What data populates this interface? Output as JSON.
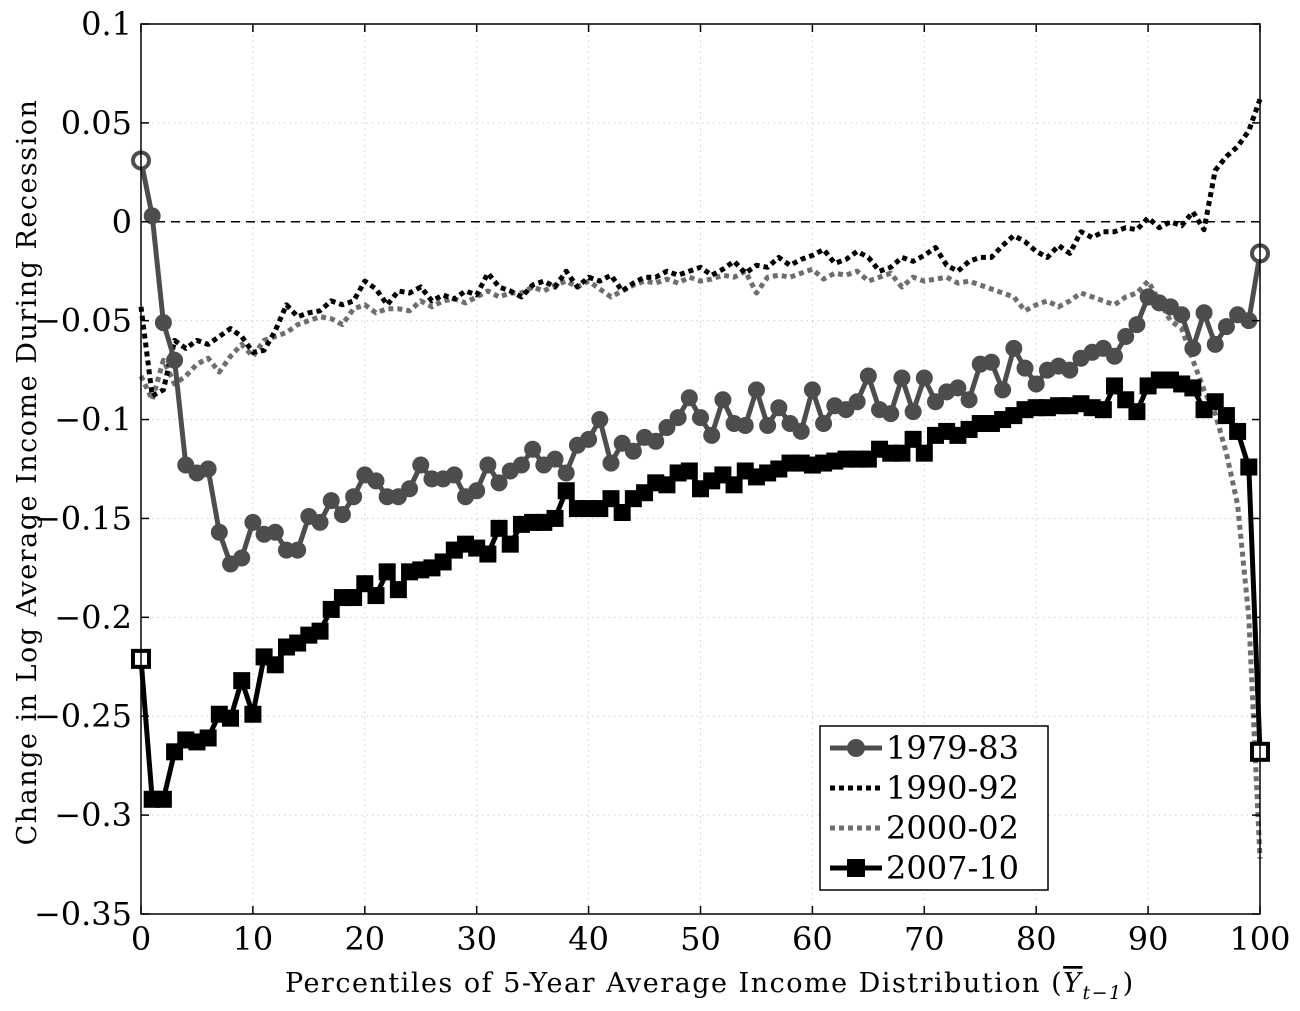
{
  "chart_data": {
    "type": "line",
    "xlabel": "Percentiles of 5-Year Average Income Distribution (",
    "xlabel_symbol": "Y",
    "xlabel_subscript": "t−1",
    "xlabel_close": ")",
    "ylabel": "Change in Log Average Income During Recession",
    "xlim": [
      0,
      100
    ],
    "ylim": [
      -0.35,
      0.1
    ],
    "xticks": [
      0,
      10,
      20,
      30,
      40,
      50,
      60,
      70,
      80,
      90,
      100
    ],
    "xtick_labels": [
      "0",
      "10",
      "20",
      "30",
      "40",
      "50",
      "60",
      "70",
      "80",
      "90",
      "100"
    ],
    "yticks": [
      0.1,
      0.05,
      0,
      -0.05,
      -0.1,
      -0.15,
      -0.2,
      -0.25,
      -0.3,
      -0.35
    ],
    "ytick_labels": [
      "0.1",
      "0.05",
      "0",
      "−0.05",
      "−0.1",
      "−0.15",
      "−0.2",
      "−0.25",
      "−0.3",
      "−0.35"
    ],
    "grid": true,
    "reference_line": 0,
    "legend_position": "lower-right",
    "series": [
      {
        "name": "1979-83",
        "color": "#4d4d4d",
        "style": "solid-circle",
        "x": [
          0,
          1,
          2,
          3,
          4,
          5,
          6,
          7,
          8,
          9,
          10,
          11,
          12,
          13,
          14,
          15,
          16,
          17,
          18,
          19,
          20,
          21,
          22,
          23,
          24,
          25,
          26,
          27,
          28,
          29,
          30,
          31,
          32,
          33,
          34,
          35,
          36,
          37,
          38,
          39,
          40,
          41,
          42,
          43,
          44,
          45,
          46,
          47,
          48,
          49,
          50,
          51,
          52,
          53,
          54,
          55,
          56,
          57,
          58,
          59,
          60,
          61,
          62,
          63,
          64,
          65,
          66,
          67,
          68,
          69,
          70,
          71,
          72,
          73,
          74,
          75,
          76,
          77,
          78,
          79,
          80,
          81,
          82,
          83,
          84,
          85,
          86,
          87,
          88,
          89,
          90,
          91,
          92,
          93,
          94,
          95,
          96,
          97,
          98,
          99,
          100
        ],
        "y": [
          0.031,
          0.003,
          -0.051,
          -0.07,
          -0.123,
          -0.127,
          -0.125,
          -0.157,
          -0.173,
          -0.17,
          -0.152,
          -0.158,
          -0.157,
          -0.166,
          -0.166,
          -0.149,
          -0.152,
          -0.141,
          -0.148,
          -0.139,
          -0.128,
          -0.131,
          -0.139,
          -0.139,
          -0.135,
          -0.123,
          -0.13,
          -0.13,
          -0.128,
          -0.139,
          -0.136,
          -0.123,
          -0.132,
          -0.126,
          -0.123,
          -0.115,
          -0.123,
          -0.12,
          -0.127,
          -0.113,
          -0.11,
          -0.1,
          -0.122,
          -0.112,
          -0.116,
          -0.109,
          -0.111,
          -0.104,
          -0.099,
          -0.089,
          -0.099,
          -0.108,
          -0.09,
          -0.102,
          -0.103,
          -0.085,
          -0.103,
          -0.094,
          -0.102,
          -0.106,
          -0.085,
          -0.102,
          -0.093,
          -0.095,
          -0.091,
          -0.078,
          -0.095,
          -0.097,
          -0.079,
          -0.096,
          -0.079,
          -0.091,
          -0.086,
          -0.084,
          -0.09,
          -0.072,
          -0.071,
          -0.085,
          -0.064,
          -0.074,
          -0.082,
          -0.075,
          -0.073,
          -0.075,
          -0.069,
          -0.066,
          -0.064,
          -0.068,
          -0.058,
          -0.052,
          -0.038,
          -0.041,
          -0.043,
          -0.047,
          -0.064,
          -0.046,
          -0.062,
          -0.053,
          -0.047,
          -0.05,
          -0.016
        ]
      },
      {
        "name": "1990-92",
        "color": "#000000",
        "style": "dotted",
        "x": [
          0,
          1,
          2,
          3,
          4,
          5,
          6,
          7,
          8,
          9,
          10,
          11,
          12,
          13,
          14,
          15,
          16,
          17,
          18,
          19,
          20,
          21,
          22,
          23,
          24,
          25,
          26,
          27,
          28,
          29,
          30,
          31,
          32,
          33,
          34,
          35,
          36,
          37,
          38,
          39,
          40,
          41,
          42,
          43,
          44,
          45,
          46,
          47,
          48,
          49,
          50,
          51,
          52,
          53,
          54,
          55,
          56,
          57,
          58,
          59,
          60,
          61,
          62,
          63,
          64,
          65,
          66,
          67,
          68,
          69,
          70,
          71,
          72,
          73,
          74,
          75,
          76,
          77,
          78,
          79,
          80,
          81,
          82,
          83,
          84,
          85,
          86,
          87,
          88,
          89,
          90,
          91,
          92,
          93,
          94,
          95,
          96,
          97,
          98,
          99,
          100
        ],
        "y": [
          -0.043,
          -0.088,
          -0.085,
          -0.06,
          -0.064,
          -0.06,
          -0.062,
          -0.058,
          -0.054,
          -0.058,
          -0.066,
          -0.065,
          -0.055,
          -0.042,
          -0.048,
          -0.046,
          -0.045,
          -0.04,
          -0.042,
          -0.04,
          -0.03,
          -0.034,
          -0.042,
          -0.035,
          -0.036,
          -0.033,
          -0.04,
          -0.037,
          -0.039,
          -0.035,
          -0.037,
          -0.026,
          -0.033,
          -0.035,
          -0.038,
          -0.032,
          -0.03,
          -0.033,
          -0.025,
          -0.033,
          -0.028,
          -0.03,
          -0.027,
          -0.035,
          -0.031,
          -0.028,
          -0.028,
          -0.025,
          -0.027,
          -0.025,
          -0.023,
          -0.027,
          -0.024,
          -0.02,
          -0.026,
          -0.022,
          -0.023,
          -0.018,
          -0.022,
          -0.019,
          -0.017,
          -0.014,
          -0.021,
          -0.019,
          -0.015,
          -0.018,
          -0.025,
          -0.023,
          -0.018,
          -0.02,
          -0.017,
          -0.013,
          -0.022,
          -0.025,
          -0.02,
          -0.018,
          -0.018,
          -0.012,
          -0.007,
          -0.01,
          -0.015,
          -0.018,
          -0.012,
          -0.016,
          -0.005,
          -0.008,
          -0.005,
          -0.005,
          -0.003,
          -0.004,
          0.002,
          -0.003,
          0.0,
          -0.002,
          0.005,
          -0.004,
          0.026,
          0.033,
          0.038,
          0.046,
          0.062
        ]
      },
      {
        "name": "2000-02",
        "color": "#6e6e6e",
        "style": "dotted",
        "x": [
          0,
          1,
          2,
          3,
          4,
          5,
          6,
          7,
          8,
          9,
          10,
          11,
          12,
          13,
          14,
          15,
          16,
          17,
          18,
          19,
          20,
          21,
          22,
          23,
          24,
          25,
          26,
          27,
          28,
          29,
          30,
          31,
          32,
          33,
          34,
          35,
          36,
          37,
          38,
          39,
          40,
          41,
          42,
          43,
          44,
          45,
          46,
          47,
          48,
          49,
          50,
          51,
          52,
          53,
          54,
          55,
          56,
          57,
          58,
          59,
          60,
          61,
          62,
          63,
          64,
          65,
          66,
          67,
          68,
          69,
          70,
          71,
          72,
          73,
          74,
          75,
          76,
          77,
          78,
          79,
          80,
          81,
          82,
          83,
          84,
          85,
          86,
          87,
          88,
          89,
          90,
          91,
          92,
          93,
          94,
          95,
          96,
          97,
          98,
          99,
          100
        ],
        "y": [
          -0.078,
          -0.09,
          -0.07,
          -0.082,
          -0.078,
          -0.072,
          -0.069,
          -0.076,
          -0.068,
          -0.062,
          -0.068,
          -0.06,
          -0.058,
          -0.056,
          -0.052,
          -0.05,
          -0.048,
          -0.049,
          -0.052,
          -0.044,
          -0.042,
          -0.046,
          -0.044,
          -0.044,
          -0.045,
          -0.04,
          -0.043,
          -0.04,
          -0.039,
          -0.041,
          -0.038,
          -0.035,
          -0.038,
          -0.036,
          -0.036,
          -0.033,
          -0.035,
          -0.032,
          -0.03,
          -0.033,
          -0.03,
          -0.034,
          -0.038,
          -0.035,
          -0.032,
          -0.03,
          -0.031,
          -0.029,
          -0.031,
          -0.028,
          -0.03,
          -0.029,
          -0.027,
          -0.028,
          -0.025,
          -0.036,
          -0.028,
          -0.027,
          -0.028,
          -0.026,
          -0.024,
          -0.029,
          -0.026,
          -0.027,
          -0.025,
          -0.03,
          -0.028,
          -0.026,
          -0.033,
          -0.028,
          -0.03,
          -0.029,
          -0.028,
          -0.031,
          -0.03,
          -0.032,
          -0.034,
          -0.036,
          -0.038,
          -0.045,
          -0.042,
          -0.04,
          -0.043,
          -0.04,
          -0.036,
          -0.038,
          -0.04,
          -0.042,
          -0.038,
          -0.036,
          -0.03,
          -0.04,
          -0.05,
          -0.054,
          -0.07,
          -0.085,
          -0.097,
          -0.117,
          -0.143,
          -0.2,
          -0.322
        ]
      },
      {
        "name": "2007-10",
        "color": "#000000",
        "style": "solid-square",
        "x": [
          0,
          1,
          2,
          3,
          4,
          5,
          6,
          7,
          8,
          9,
          10,
          11,
          12,
          13,
          14,
          15,
          16,
          17,
          18,
          19,
          20,
          21,
          22,
          23,
          24,
          25,
          26,
          27,
          28,
          29,
          30,
          31,
          32,
          33,
          34,
          35,
          36,
          37,
          38,
          39,
          40,
          41,
          42,
          43,
          44,
          45,
          46,
          47,
          48,
          49,
          50,
          51,
          52,
          53,
          54,
          55,
          56,
          57,
          58,
          59,
          60,
          61,
          62,
          63,
          64,
          65,
          66,
          67,
          68,
          69,
          70,
          71,
          72,
          73,
          74,
          75,
          76,
          77,
          78,
          79,
          80,
          81,
          82,
          83,
          84,
          85,
          86,
          87,
          88,
          89,
          90,
          91,
          92,
          93,
          94,
          95,
          96,
          97,
          98,
          99,
          100
        ],
        "y": [
          -0.221,
          -0.292,
          -0.292,
          -0.268,
          -0.262,
          -0.263,
          -0.261,
          -0.249,
          -0.251,
          -0.232,
          -0.249,
          -0.22,
          -0.224,
          -0.215,
          -0.213,
          -0.209,
          -0.207,
          -0.196,
          -0.19,
          -0.19,
          -0.183,
          -0.189,
          -0.177,
          -0.186,
          -0.177,
          -0.176,
          -0.175,
          -0.172,
          -0.166,
          -0.163,
          -0.165,
          -0.168,
          -0.155,
          -0.163,
          -0.153,
          -0.152,
          -0.152,
          -0.15,
          -0.136,
          -0.145,
          -0.145,
          -0.145,
          -0.14,
          -0.147,
          -0.14,
          -0.137,
          -0.132,
          -0.133,
          -0.127,
          -0.126,
          -0.135,
          -0.131,
          -0.128,
          -0.133,
          -0.126,
          -0.129,
          -0.127,
          -0.125,
          -0.122,
          -0.122,
          -0.123,
          -0.122,
          -0.121,
          -0.12,
          -0.12,
          -0.12,
          -0.115,
          -0.117,
          -0.117,
          -0.11,
          -0.117,
          -0.108,
          -0.106,
          -0.108,
          -0.105,
          -0.102,
          -0.102,
          -0.1,
          -0.098,
          -0.095,
          -0.094,
          -0.094,
          -0.093,
          -0.093,
          -0.092,
          -0.094,
          -0.095,
          -0.083,
          -0.09,
          -0.096,
          -0.083,
          -0.08,
          -0.08,
          -0.082,
          -0.084,
          -0.095,
          -0.091,
          -0.098,
          -0.106,
          -0.124,
          -0.268
        ]
      }
    ]
  }
}
